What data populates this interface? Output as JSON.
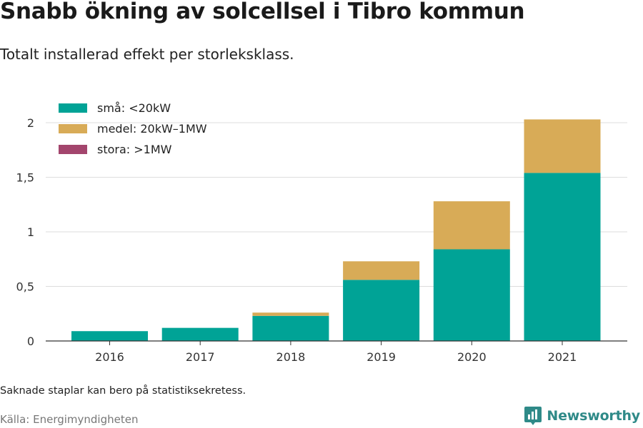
{
  "header": {
    "title": "Snabb ökning av solcellsel i Tibro kommun",
    "subtitle": "Totalt installerad effekt per storleksklass."
  },
  "footer": {
    "note": "Saknade staplar kan bero på statistiksekretess.",
    "source": "Källa: Energimyndigheten",
    "brand": "Newsworthy",
    "brand_icon": "newsworthy-logo-icon"
  },
  "chart_data": {
    "type": "bar",
    "stacked": true,
    "categories": [
      "2016",
      "2017",
      "2018",
      "2019",
      "2020",
      "2021"
    ],
    "series": [
      {
        "name": "små: <20kW",
        "color": "#00a396",
        "values": [
          0.09,
          0.12,
          0.23,
          0.56,
          0.84,
          1.54
        ]
      },
      {
        "name": "medel: 20kW–1MW",
        "color": "#d8ab57",
        "values": [
          0.0,
          0.0,
          0.03,
          0.17,
          0.44,
          0.49
        ]
      },
      {
        "name": "stora: >1MW",
        "color": "#a3456d",
        "values": [
          0,
          0,
          0,
          0,
          0,
          0
        ]
      }
    ],
    "yticks": [
      0,
      0.5,
      1,
      1.5,
      2
    ],
    "ytick_labels": [
      "0",
      "0,5",
      "1",
      "1,5",
      "2"
    ],
    "ylim": [
      0,
      2.1
    ],
    "grid": true,
    "legend_position": "top-left",
    "xlabel": "",
    "ylabel": ""
  }
}
